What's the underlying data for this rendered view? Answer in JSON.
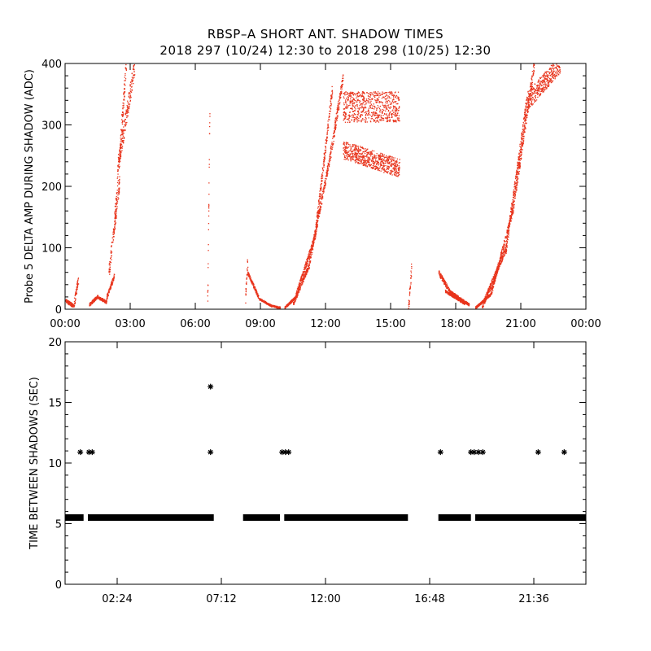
{
  "figure": {
    "title_line1": "RBSP–A SHORT ANT. SHADOW TIMES",
    "title_line2": "2018 297 (10/24) 12:30 to 2018 298 (10/25) 12:30"
  },
  "chart_data": [
    {
      "type": "scatter",
      "title": "",
      "xlabel": "",
      "ylabel": "Probe 5 DELTA AMP DURING SHADOW (ADC)",
      "x_unit": "hours",
      "xlim": [
        0,
        24
      ],
      "ylim": [
        0,
        400
      ],
      "x_ticks": [
        0,
        3,
        6,
        9,
        12,
        15,
        18,
        21,
        24
      ],
      "x_tick_labels": [
        "00:00",
        "03:00",
        "06:00",
        "09:00",
        "12:00",
        "15:00",
        "18:00",
        "21:00",
        "00:00"
      ],
      "y_ticks": [
        0,
        100,
        200,
        300,
        400
      ],
      "y_tick_labels": [
        "0",
        "100",
        "200",
        "300",
        "400"
      ],
      "color": "#e8341c",
      "grid": false,
      "segments": [
        {
          "x": [
            0.0,
            0.4
          ],
          "y": [
            15,
            5
          ],
          "spread": 6
        },
        {
          "x": [
            0.4,
            0.6
          ],
          "y": [
            10,
            50
          ],
          "spread": 15
        },
        {
          "x": [
            1.1,
            1.5
          ],
          "y": [
            8,
            22
          ],
          "spread": 5
        },
        {
          "x": [
            1.5,
            1.9
          ],
          "y": [
            20,
            12
          ],
          "spread": 5
        },
        {
          "x": [
            1.9,
            2.25
          ],
          "y": [
            20,
            55
          ],
          "spread": 8
        },
        {
          "x": [
            2.0,
            2.5
          ],
          "y": [
            60,
            210
          ],
          "spread": 25
        },
        {
          "x": [
            2.25,
            2.8
          ],
          "y": [
            140,
            400
          ],
          "spread": 30
        },
        {
          "x": [
            2.4,
            3.2
          ],
          "y": [
            230,
            400
          ],
          "spread": 30
        },
        {
          "x": [
            6.55,
            6.65
          ],
          "y": [
            10,
            330
          ],
          "spread": 30
        },
        {
          "x": [
            8.3,
            8.4
          ],
          "y": [
            20,
            80
          ],
          "spread": 25
        },
        {
          "x": [
            8.4,
            8.9
          ],
          "y": [
            60,
            20
          ],
          "spread": 6
        },
        {
          "x": [
            8.9,
            9.5
          ],
          "y": [
            18,
            6
          ],
          "spread": 3
        },
        {
          "x": [
            9.5,
            9.9
          ],
          "y": [
            6,
            3
          ],
          "spread": 3
        },
        {
          "x": [
            10.1,
            10.6
          ],
          "y": [
            3,
            20
          ],
          "spread": 4
        },
        {
          "x": [
            10.6,
            11.5
          ],
          "y": [
            20,
            120
          ],
          "spread": 10
        },
        {
          "x": [
            11.5,
            12.3
          ],
          "y": [
            120,
            360
          ],
          "spread": 20
        },
        {
          "x": [
            10.5,
            11.2
          ],
          "y": [
            10,
            70
          ],
          "spread": 8
        },
        {
          "x": [
            11.2,
            12.2
          ],
          "y": [
            70,
            250
          ],
          "spread": 15
        },
        {
          "x": [
            12.2,
            12.8
          ],
          "y": [
            250,
            380
          ],
          "spread": 20
        },
        {
          "x": [
            12.8,
            15.4
          ],
          "y": [
            330,
            330
          ],
          "spread": 50
        },
        {
          "x": [
            12.8,
            15.4
          ],
          "y": [
            260,
            230
          ],
          "spread": 30
        },
        {
          "x": [
            15.8,
            15.95
          ],
          "y": [
            0,
            70
          ],
          "spread": 20
        },
        {
          "x": [
            17.2,
            17.7
          ],
          "y": [
            60,
            30
          ],
          "spread": 8
        },
        {
          "x": [
            17.7,
            18.6
          ],
          "y": [
            30,
            8
          ],
          "spread": 4
        },
        {
          "x": [
            17.5,
            18.4
          ],
          "y": [
            30,
            10
          ],
          "spread": 4
        },
        {
          "x": [
            18.9,
            19.6
          ],
          "y": [
            3,
            25
          ],
          "spread": 4
        },
        {
          "x": [
            19.6,
            20.6
          ],
          "y": [
            25,
            160
          ],
          "spread": 12
        },
        {
          "x": [
            20.6,
            21.6
          ],
          "y": [
            160,
            400
          ],
          "spread": 20
        },
        {
          "x": [
            19.2,
            20.3
          ],
          "y": [
            5,
            100
          ],
          "spread": 10
        },
        {
          "x": [
            20.3,
            21.3
          ],
          "y": [
            100,
            350
          ],
          "spread": 20
        },
        {
          "x": [
            21.3,
            22.8
          ],
          "y": [
            340,
            400
          ],
          "spread": 30
        }
      ]
    },
    {
      "type": "scatter",
      "title": "",
      "xlabel": "",
      "ylabel": "TIME BETWEEN SHADOWS (SEC)",
      "x_unit": "hours",
      "xlim": [
        0,
        24
      ],
      "ylim": [
        0,
        20
      ],
      "x_ticks": [
        2.4,
        7.2,
        12.0,
        16.8,
        21.6
      ],
      "x_tick_labels": [
        "02:24",
        "07:12",
        "12:00",
        "16:48",
        "21:36"
      ],
      "y_ticks": [
        0,
        5,
        10,
        15,
        20
      ],
      "y_tick_labels": [
        "0",
        "5",
        "10",
        "15",
        "20"
      ],
      "color": "#000000",
      "marker": "asterisk",
      "baseline_value": 5.5,
      "baseline_ranges": [
        [
          0.0,
          0.85
        ],
        [
          1.05,
          6.85
        ],
        [
          8.2,
          9.9
        ],
        [
          10.1,
          15.8
        ],
        [
          17.2,
          18.7
        ],
        [
          18.9,
          24.0
        ]
      ],
      "outliers": [
        {
          "x": 0.7,
          "y": 10.9
        },
        {
          "x": 1.1,
          "y": 10.9
        },
        {
          "x": 1.25,
          "y": 10.9
        },
        {
          "x": 6.7,
          "y": 16.3
        },
        {
          "x": 6.7,
          "y": 10.9
        },
        {
          "x": 10.0,
          "y": 10.9
        },
        {
          "x": 10.15,
          "y": 10.9
        },
        {
          "x": 10.3,
          "y": 10.9
        },
        {
          "x": 17.3,
          "y": 10.9
        },
        {
          "x": 18.7,
          "y": 10.9
        },
        {
          "x": 18.85,
          "y": 10.9
        },
        {
          "x": 19.05,
          "y": 10.9
        },
        {
          "x": 19.25,
          "y": 10.9
        },
        {
          "x": 21.8,
          "y": 10.9
        },
        {
          "x": 23.0,
          "y": 10.9
        }
      ]
    }
  ]
}
